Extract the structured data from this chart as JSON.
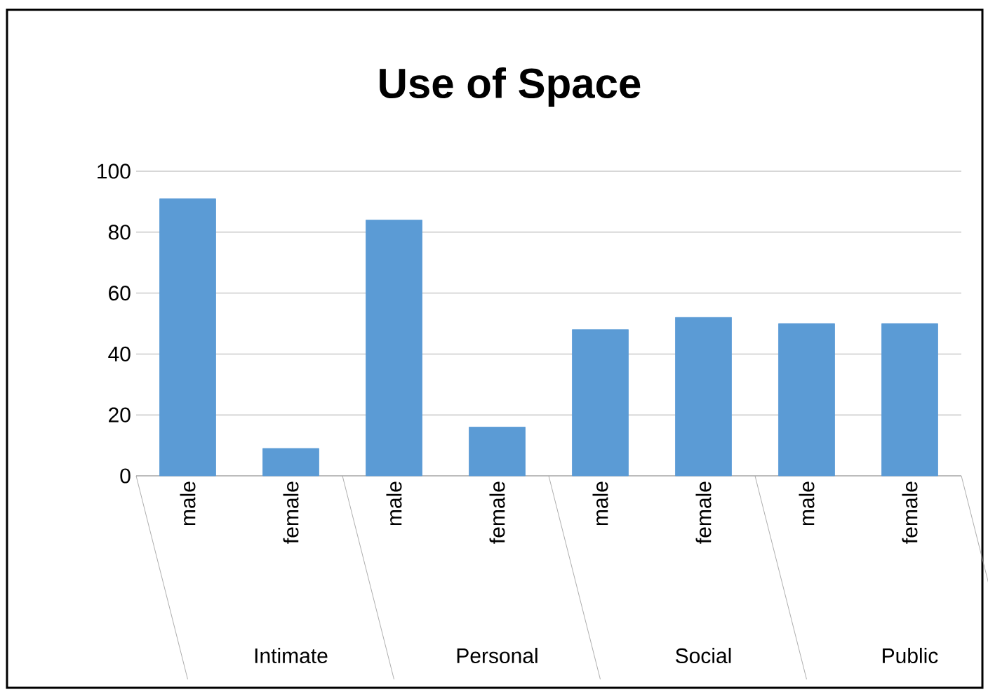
{
  "chart_data": {
    "type": "bar",
    "title": "Use of Space",
    "categories": [
      "male",
      "female",
      "male",
      "female",
      "male",
      "female",
      "male",
      "female"
    ],
    "values": [
      91,
      9,
      84,
      16,
      48,
      52,
      50,
      50
    ],
    "color": "#5b9bd5",
    "ylim": [
      0,
      100
    ],
    "yticks": [
      0,
      20,
      40,
      60,
      80,
      100
    ],
    "grid": "y",
    "annotations": [
      "Intimate",
      "Personal",
      "Social",
      "Public"
    ]
  }
}
